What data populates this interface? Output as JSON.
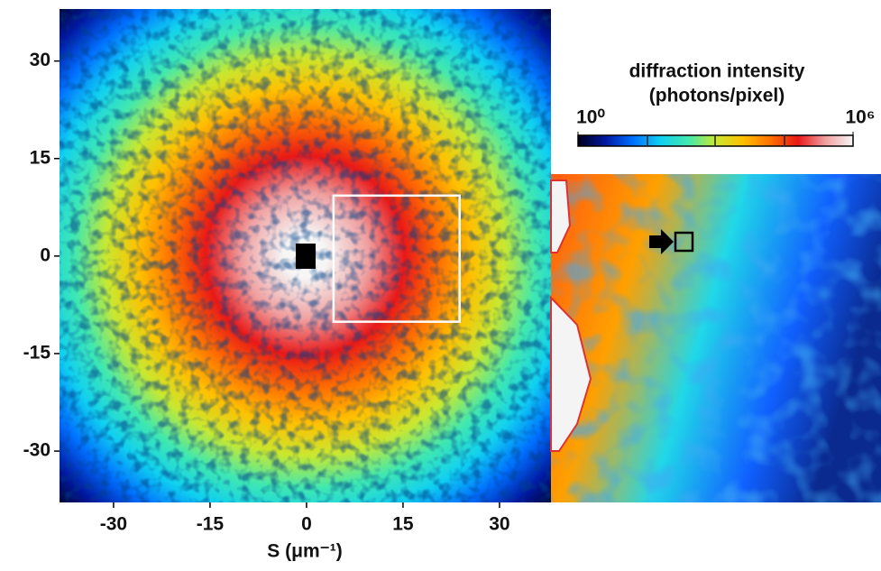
{
  "chart_data": {
    "type": "image",
    "xlabel": "S (μm⁻¹)",
    "xlim": [
      -38.4,
      38
    ],
    "xticks": [
      -30,
      -15,
      0,
      15,
      30
    ],
    "ylim": [
      -37.9,
      38
    ],
    "yticks": [
      -30,
      -15,
      0,
      15,
      30
    ],
    "zoom_box": {
      "x": [
        4.2,
        23.8
      ],
      "y": [
        -10.1,
        9.3
      ]
    },
    "colorbar": {
      "title": [
        "diffraction intensity",
        "(photons/pixel)"
      ],
      "log": true,
      "clim": [
        1,
        1000000
      ],
      "ticks": [
        {
          "value": 1,
          "label": "10⁰"
        },
        {
          "value": 1000000,
          "label": "10⁶"
        }
      ],
      "colormap": [
        "#00001a",
        "#0018a0",
        "#0070ff",
        "#10d0f0",
        "#40e8b0",
        "#c8e830",
        "#ffc000",
        "#ff7000",
        "#e81818",
        "#f0a0a0",
        "#f6f6f6"
      ]
    }
  }
}
